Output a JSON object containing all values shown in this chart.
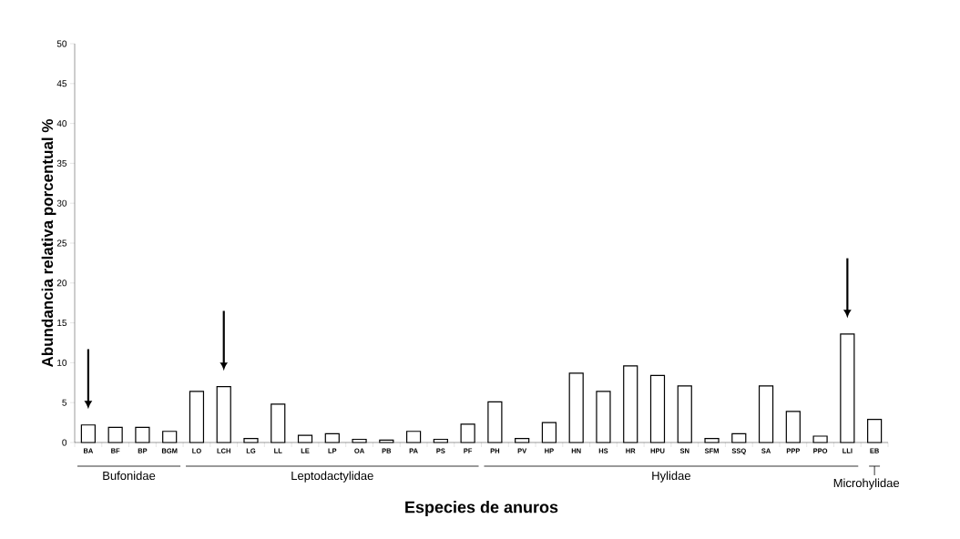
{
  "chart_data": {
    "type": "bar",
    "xlabel": "Especies de anuros",
    "ylabel": "Abundancia relativa porcentual %",
    "categories": [
      "BA",
      "BF",
      "BP",
      "BGM",
      "LO",
      "LCH",
      "LG",
      "LL",
      "LE",
      "LP",
      "OA",
      "PB",
      "PA",
      "PS",
      "PF",
      "PH",
      "PV",
      "HP",
      "HN",
      "HS",
      "HR",
      "HPU",
      "SN",
      "SFM",
      "SSQ",
      "SA",
      "PPP",
      "PPO",
      "LLI",
      "EB"
    ],
    "values": [
      2.2,
      1.9,
      1.9,
      1.4,
      6.4,
      7.0,
      0.5,
      4.8,
      0.9,
      1.1,
      0.4,
      0.3,
      1.4,
      0.4,
      2.3,
      5.1,
      0.5,
      2.5,
      8.7,
      6.4,
      9.6,
      8.4,
      7.1,
      0.5,
      1.1,
      7.1,
      3.9,
      0.8,
      13.6,
      2.9
    ],
    "color": "#ffffff",
    "ylim": [
      0,
      50
    ],
    "yticks": [
      0,
      5,
      10,
      15,
      20,
      25,
      30,
      35,
      40,
      45,
      50
    ],
    "annotations": [
      "Bufonidae",
      "Leptodactylidae",
      "Hylidae",
      "Microhylidae"
    ]
  }
}
